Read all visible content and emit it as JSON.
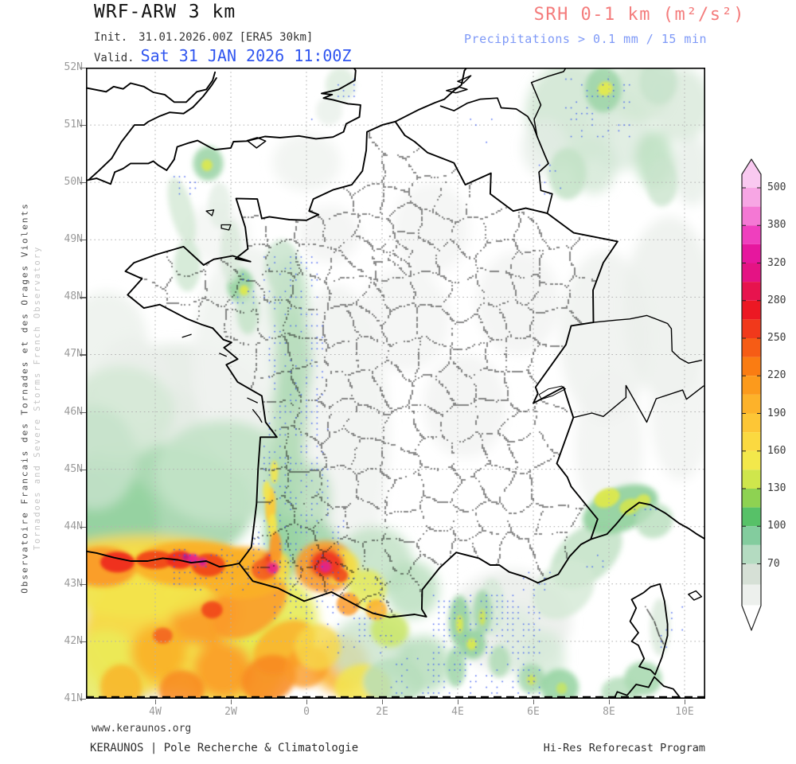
{
  "header": {
    "model_title": "WRF-ARW 3 km",
    "init_label": "Init.",
    "init_value": "31.01.2026.00Z [ERA5 30km]",
    "valid_label": "Valid.",
    "valid_value": "Sat 31 JAN 2026 11:00Z",
    "valid_color": "#2f55f0",
    "product_title": "SRH 0-1 km (m²/s²)",
    "product_title_color": "#f47c7c",
    "product_subtitle": "Precipitations > 0.1 mm / 15 min",
    "product_subtitle_color": "#7e99f7"
  },
  "sidebar_left": {
    "line_primary": "Observatoire Francais des Tornades et des Orages Violents",
    "line_secondary": "Tornadoes and Severe Storms French Observatory"
  },
  "map": {
    "lat_tick_labels": [
      "52N",
      "51N",
      "50N",
      "49N",
      "48N",
      "47N",
      "46N",
      "45N",
      "44N",
      "43N",
      "42N",
      "41N"
    ],
    "lat_tick_degrees": [
      52,
      51,
      50,
      49,
      48,
      47,
      46,
      45,
      44,
      43,
      42,
      41
    ],
    "lon_tick_labels": [
      "4W",
      "2W",
      "0",
      "2E",
      "4E",
      "6E",
      "8E",
      "10E"
    ],
    "lon_tick_degrees": [
      -4,
      -2,
      0,
      2,
      4,
      6,
      8,
      10
    ],
    "graticule_color": "#b2b2b2",
    "precip_dot_color": "#3c5cf2",
    "field_blobs": [
      [
        -4.8,
        44.6,
        3.2,
        2.0,
        0,
        "#dfe7df",
        0.95
      ],
      [
        -3.4,
        45.7,
        2.6,
        1.5,
        0,
        "#e6ece6",
        0.9
      ],
      [
        -5.3,
        42.0,
        1.7,
        1.5,
        0,
        "#e4e8e4",
        0.9
      ],
      [
        -5.3,
        47.2,
        1.1,
        0.9,
        0,
        "#ebf0eb",
        0.8
      ],
      [
        -4.6,
        46.5,
        1.0,
        0.8,
        0,
        "#eaefea",
        0.8
      ],
      [
        -1.5,
        46.9,
        1.5,
        2.0,
        0,
        "#f0f3f0",
        0.9
      ],
      [
        0.8,
        45.6,
        1.4,
        2.6,
        0,
        "#f0f2f0",
        0.85
      ],
      [
        2.6,
        47.6,
        1.2,
        0.9,
        0,
        "#f2f4f2",
        0.8
      ],
      [
        4.2,
        46.1,
        1.1,
        0.9,
        0,
        "#f1f3f1",
        0.8
      ],
      [
        5.6,
        47.9,
        1.1,
        0.9,
        0,
        "#f1f3f1",
        0.8
      ],
      [
        7.9,
        47.3,
        1.2,
        1.5,
        0,
        "#eef1ee",
        0.85
      ],
      [
        9.6,
        47.8,
        1.2,
        1.6,
        0,
        "#ecf0ec",
        0.85
      ],
      [
        9.9,
        46.0,
        0.8,
        1.2,
        0,
        "#f0f2f0",
        0.8
      ],
      [
        3.3,
        49.2,
        1.0,
        0.8,
        0,
        "#f2f4f2",
        0.8
      ],
      [
        0.6,
        49.1,
        0.8,
        0.5,
        0,
        "#f1f3f1",
        0.8
      ],
      [
        0.0,
        50.35,
        0.9,
        0.5,
        0,
        "#eff2ef",
        0.8
      ],
      [
        5.4,
        42.35,
        1.6,
        0.9,
        0,
        "#ebeeeb",
        0.9
      ],
      [
        8.0,
        45.4,
        0.9,
        1.3,
        0,
        "#f0f2f0",
        0.8
      ],
      [
        -2.4,
        49.1,
        0.9,
        0.5,
        0,
        "#f1f3f1",
        0.7
      ],
      [
        -4.2,
        44.35,
        2.8,
        1.1,
        0,
        "#a9d8b1",
        0.95
      ],
      [
        -2.2,
        44.95,
        1.8,
        0.9,
        0,
        "#c2e2c6",
        0.9
      ],
      [
        -5.4,
        44.1,
        1.5,
        0.9,
        0,
        "#93d29f",
        0.9
      ],
      [
        -4.9,
        46.0,
        1.4,
        0.8,
        0,
        "#d3e8d5",
        0.85
      ],
      [
        -5.6,
        45.2,
        1.1,
        0.9,
        0,
        "#c6e2ca",
        0.85
      ],
      [
        -3.3,
        42.3,
        2.4,
        1.2,
        0,
        "#f2e44c",
        0.95
      ],
      [
        -4.6,
        42.0,
        1.4,
        1.0,
        0,
        "#f6d84a",
        0.92
      ],
      [
        -2.0,
        41.8,
        1.6,
        1.0,
        0,
        "#f2e44c",
        0.92
      ],
      [
        -0.9,
        42.3,
        1.2,
        0.9,
        0,
        "#e6ea52",
        0.88
      ],
      [
        -5.3,
        41.4,
        1.0,
        0.8,
        0,
        "#eaec5a",
        0.8
      ],
      [
        -1.5,
        42.6,
        1.1,
        0.45,
        -35,
        "#fa9a28",
        0.88
      ],
      [
        -0.6,
        41.9,
        0.9,
        0.4,
        -35,
        "#fab028",
        0.85
      ],
      [
        -1.0,
        41.35,
        0.75,
        0.4,
        -25,
        "#f8871e",
        0.85
      ],
      [
        0.0,
        41.55,
        0.6,
        0.35,
        -30,
        "#fa9a28",
        0.8
      ],
      [
        -2.7,
        42.45,
        0.9,
        0.5,
        -20,
        "#fa9a28",
        0.9
      ],
      [
        -3.9,
        41.8,
        0.75,
        0.5,
        0,
        "#fab028",
        0.9
      ],
      [
        -2.2,
        41.5,
        0.8,
        0.5,
        20,
        "#fa9a28",
        0.88
      ],
      [
        -4.9,
        41.2,
        0.55,
        0.4,
        0,
        "#fab028",
        0.8
      ],
      [
        -3.3,
        41.15,
        0.6,
        0.35,
        0,
        "#f8871e",
        0.85
      ],
      [
        -4.3,
        43.35,
        2.6,
        0.5,
        0,
        "#f6d84a",
        0.97
      ],
      [
        -4.5,
        43.0,
        2.2,
        0.6,
        0,
        "#f2e44c",
        0.95
      ],
      [
        -3.0,
        43.35,
        1.6,
        0.4,
        0,
        "#fab028",
        0.95
      ],
      [
        -5.4,
        43.3,
        0.9,
        0.35,
        0,
        "#fa9a28",
        0.95
      ],
      [
        -1.7,
        43.2,
        1.2,
        0.45,
        0,
        "#fab028",
        0.92
      ],
      [
        1.8,
        43.4,
        1.0,
        0.6,
        0,
        "#c2e2c6",
        0.85
      ],
      [
        0.9,
        41.6,
        0.75,
        0.5,
        0,
        "#fab028",
        0.85
      ],
      [
        1.5,
        41.2,
        0.75,
        0.4,
        0,
        "#f2e44c",
        0.85
      ],
      [
        1.7,
        41.85,
        1.1,
        0.6,
        0,
        "#c9e4cc",
        0.8
      ],
      [
        7.0,
        51.2,
        1.2,
        0.9,
        0,
        "#d2e7d4",
        0.9
      ],
      [
        8.3,
        50.9,
        0.85,
        0.7,
        0,
        "#dcebde",
        0.85
      ],
      [
        8.8,
        51.6,
        0.85,
        0.55,
        0,
        "#d2e7d4",
        0.85
      ],
      [
        9.9,
        51.35,
        0.8,
        0.65,
        0,
        "#d8e9da",
        0.8
      ],
      [
        7.4,
        43.5,
        1.1,
        0.45,
        -40,
        "#c2e2c6",
        0.85
      ],
      [
        8.3,
        44.3,
        1.05,
        0.38,
        -22,
        "#93d29f",
        0.95
      ],
      [
        6.8,
        42.9,
        0.9,
        0.45,
        -40,
        "#d3e8d5",
        0.8
      ],
      [
        5.6,
        42.0,
        0.55,
        0.6,
        0,
        "#dcebde",
        0.8
      ],
      [
        6.3,
        41.7,
        0.55,
        0.5,
        0,
        "#d3e8d5",
        0.75
      ],
      [
        10.2,
        50.2,
        0.5,
        0.6,
        0,
        "#e4ece5",
        0.75
      ],
      [
        -0.55,
        43.9,
        0.55,
        0.8,
        0,
        "#93d29f",
        0.95
      ],
      [
        -0.5,
        44.9,
        0.5,
        0.8,
        0,
        "#abd9b1",
        0.9
      ],
      [
        -0.45,
        45.9,
        0.5,
        0.85,
        0,
        "#b7ddbb",
        0.88
      ],
      [
        -0.35,
        46.9,
        0.5,
        0.9,
        0,
        "#b1dbb7",
        0.85
      ],
      [
        -0.45,
        47.9,
        0.5,
        0.8,
        0,
        "#bbdfbf",
        0.85
      ],
      [
        -0.65,
        48.55,
        0.45,
        0.45,
        0,
        "#c6e2ca",
        0.8
      ],
      [
        0.15,
        44.5,
        0.5,
        0.6,
        0,
        "#b7ddbb",
        0.8
      ],
      [
        0.3,
        43.6,
        0.6,
        0.5,
        0,
        "#9fd5a8",
        0.85
      ],
      [
        0.5,
        43.3,
        0.8,
        0.45,
        0,
        "#fa9a28",
        0.9
      ],
      [
        0.9,
        43.3,
        0.5,
        0.3,
        0,
        "#f2e44c",
        0.85
      ],
      [
        1.6,
        42.9,
        0.5,
        0.35,
        0,
        "#e6ea52",
        0.8
      ],
      [
        2.2,
        42.2,
        0.5,
        0.3,
        0,
        "#c9e65e",
        0.8
      ],
      [
        1.1,
        42.65,
        0.3,
        0.2,
        0,
        "#fa9a28",
        0.85
      ],
      [
        1.85,
        42.55,
        0.28,
        0.18,
        0,
        "#fab028",
        0.85
      ],
      [
        0.3,
        41.9,
        0.6,
        0.4,
        0,
        "#f6d84a",
        0.8
      ],
      [
        -0.85,
        43.35,
        0.35,
        0.22,
        0,
        "#ee2a1e",
        0.92
      ],
      [
        -5.0,
        43.38,
        0.45,
        0.18,
        0,
        "#ee2a1e",
        0.95
      ],
      [
        -4.0,
        43.42,
        0.5,
        0.16,
        0,
        "#f04018",
        0.9
      ],
      [
        -3.35,
        43.42,
        0.35,
        0.16,
        0,
        "#ee2a1e",
        0.95
      ],
      [
        -2.6,
        43.33,
        0.45,
        0.2,
        0,
        "#f04018",
        0.9
      ],
      [
        -2.5,
        42.55,
        0.28,
        0.15,
        0,
        "#f04018",
        0.85
      ],
      [
        -3.8,
        42.1,
        0.26,
        0.14,
        0,
        "#f25a20",
        0.8
      ],
      [
        0.55,
        43.35,
        0.45,
        0.25,
        0,
        "#ee2a1e",
        0.9
      ],
      [
        -1.15,
        43.25,
        0.3,
        0.18,
        0,
        "#f25a20",
        0.85
      ],
      [
        2.8,
        42.9,
        0.7,
        0.5,
        0,
        "#b7ddbb",
        0.8
      ],
      [
        3.1,
        41.6,
        0.7,
        0.5,
        0,
        "#b1dbb7",
        0.8
      ],
      [
        2.3,
        41.3,
        0.8,
        0.4,
        0,
        "#b7ddbb",
        0.8
      ],
      [
        -2.6,
        50.33,
        0.4,
        0.3,
        0,
        "#9fd5a8",
        0.9
      ],
      [
        -3.3,
        49.5,
        0.3,
        0.6,
        -15,
        "#d3e8d5",
        0.8
      ],
      [
        -3.15,
        48.55,
        0.35,
        0.45,
        0,
        "#cde6d0",
        0.8
      ],
      [
        -1.75,
        48.2,
        0.35,
        0.3,
        0,
        "#93d29f",
        0.9
      ],
      [
        -1.55,
        47.75,
        0.3,
        0.4,
        0,
        "#c2e2c6",
        0.8
      ],
      [
        -2.0,
        48.8,
        0.28,
        0.55,
        0,
        "#d8e9da",
        0.8
      ],
      [
        -2.3,
        49.6,
        0.3,
        0.4,
        0,
        "#e0ece1",
        0.75
      ],
      [
        0.9,
        51.7,
        0.4,
        0.3,
        0,
        "#d8e9da",
        0.75
      ],
      [
        0.6,
        51.25,
        0.35,
        0.25,
        0,
        "#e6eee7",
        0.7
      ],
      [
        7.85,
        51.62,
        0.48,
        0.4,
        0,
        "#9fd5a8",
        0.9
      ],
      [
        7.6,
        50.3,
        0.6,
        0.5,
        0,
        "#d2e7d4",
        0.8
      ],
      [
        6.9,
        50.15,
        0.5,
        0.45,
        0,
        "#c2e2c6",
        0.85
      ],
      [
        9.2,
        50.4,
        0.5,
        0.5,
        0,
        "#bbdfbf",
        0.85
      ],
      [
        9.4,
        50.0,
        0.42,
        0.42,
        0,
        "#c9e4cc",
        0.8
      ],
      [
        6.3,
        50.6,
        0.6,
        0.5,
        0,
        "#e4ece5",
        0.75
      ],
      [
        9.3,
        51.75,
        0.5,
        0.4,
        0,
        "#c6e2ca",
        0.8
      ],
      [
        9.2,
        44.1,
        0.5,
        0.3,
        -25,
        "#b7ddbb",
        0.8
      ],
      [
        4.9,
        42.6,
        0.35,
        0.5,
        0,
        "#d3e8d5",
        0.75
      ],
      [
        4.05,
        42.35,
        0.28,
        0.45,
        0,
        "#93d29f",
        0.9
      ],
      [
        4.65,
        42.5,
        0.26,
        0.4,
        0,
        "#9fd5a8",
        0.85
      ],
      [
        4.4,
        41.95,
        0.35,
        0.26,
        0,
        "#93d29f",
        0.9
      ],
      [
        3.95,
        41.55,
        0.26,
        0.35,
        0,
        "#9fd5a8",
        0.85
      ],
      [
        5.1,
        41.65,
        0.28,
        0.28,
        0,
        "#abd9b1",
        0.8
      ],
      [
        5.95,
        41.35,
        0.35,
        0.26,
        0,
        "#9fd5a8",
        0.8
      ],
      [
        6.7,
        41.2,
        0.5,
        0.32,
        0,
        "#93d29f",
        0.85
      ],
      [
        8.9,
        41.35,
        0.5,
        0.3,
        0,
        "#9fd5a8",
        0.8
      ],
      [
        8.3,
        41.12,
        0.5,
        0.26,
        0,
        "#abd9b1",
        0.75
      ],
      [
        9.35,
        42.25,
        0.26,
        0.5,
        0,
        "#d8e9da",
        0.8
      ],
      [
        -0.95,
        44.35,
        0.14,
        0.34,
        0,
        "#fbca38",
        0.95
      ],
      [
        -0.9,
        44.0,
        0.12,
        0.22,
        0,
        "#f2e44c",
        0.95
      ],
      [
        -0.85,
        44.95,
        0.1,
        0.2,
        0,
        "#f2e44c",
        0.9
      ],
      [
        -0.82,
        43.62,
        0.16,
        0.3,
        0,
        "#fa9a28",
        0.95
      ],
      [
        -1.05,
        44.62,
        0.1,
        0.18,
        0,
        "#f2e44c",
        0.9
      ],
      [
        -0.65,
        43.3,
        0.22,
        0.25,
        0,
        "#f2e44c",
        0.9
      ],
      [
        -3.0,
        43.44,
        0.14,
        0.09,
        0,
        "#e8238c",
        0.95
      ],
      [
        -2.75,
        43.38,
        0.1,
        0.07,
        0,
        "#d6179e",
        0.9
      ],
      [
        -3.2,
        43.47,
        0.08,
        0.06,
        0,
        "#b01890",
        0.85
      ],
      [
        -0.88,
        43.28,
        0.15,
        0.1,
        0,
        "#e8238c",
        0.9
      ],
      [
        0.5,
        43.3,
        0.16,
        0.1,
        0,
        "#e0238c",
        0.9
      ],
      [
        0.9,
        43.15,
        0.2,
        0.12,
        0,
        "#f04018",
        0.85
      ],
      [
        -1.65,
        48.12,
        0.12,
        0.09,
        0,
        "#dce84e",
        0.95
      ],
      [
        -2.63,
        50.3,
        0.14,
        0.1,
        0,
        "#dce84e",
        0.9
      ],
      [
        7.9,
        51.63,
        0.2,
        0.12,
        -35,
        "#e4ea4e",
        0.95
      ],
      [
        7.95,
        44.5,
        0.35,
        0.16,
        -22,
        "#dce84e",
        0.95
      ],
      [
        8.55,
        44.35,
        0.28,
        0.13,
        -22,
        "#d2e450",
        0.9
      ],
      [
        8.9,
        44.45,
        0.2,
        0.11,
        -22,
        "#dce84e",
        0.85
      ],
      [
        4.05,
        42.3,
        0.09,
        0.16,
        0,
        "#dce84e",
        0.9
      ],
      [
        4.65,
        42.42,
        0.08,
        0.14,
        0,
        "#d2e450",
        0.85
      ],
      [
        4.37,
        41.95,
        0.13,
        0.1,
        0,
        "#dce84e",
        0.9
      ],
      [
        5.95,
        41.33,
        0.12,
        0.09,
        0,
        "#d2e450",
        0.8
      ],
      [
        6.75,
        41.18,
        0.14,
        0.1,
        0,
        "#c9e65e",
        0.8
      ]
    ],
    "precip_regions": [
      [
        -1.25,
        47.6,
        0.35,
        48.75,
        0.3
      ],
      [
        -1.05,
        45.8,
        0.45,
        47.6,
        0.35
      ],
      [
        -1.25,
        44.2,
        0.65,
        45.8,
        0.4
      ],
      [
        -1.45,
        43.2,
        1.1,
        44.2,
        0.5
      ],
      [
        -3.6,
        42.9,
        -1.45,
        43.62,
        0.45
      ],
      [
        -0.9,
        42.4,
        2.1,
        43.2,
        0.45
      ],
      [
        0.5,
        41.8,
        2.3,
        42.4,
        0.3
      ],
      [
        3.3,
        41.0,
        6.2,
        42.9,
        0.5
      ],
      [
        2.2,
        41.0,
        3.3,
        41.8,
        0.3
      ],
      [
        5.65,
        42.9,
        6.45,
        43.3,
        0.3
      ],
      [
        7.3,
        43.3,
        7.95,
        43.65,
        0.25
      ],
      [
        6.8,
        50.8,
        8.6,
        51.9,
        0.3
      ],
      [
        5.9,
        49.7,
        6.8,
        50.4,
        0.2
      ],
      [
        4.3,
        50.7,
        4.95,
        51.15,
        0.2
      ],
      [
        -3.6,
        49.8,
        -2.9,
        50.45,
        0.3
      ],
      [
        0.8,
        51.5,
        1.35,
        51.95,
        0.3
      ],
      [
        -2.05,
        47.9,
        -1.3,
        48.45,
        0.3
      ],
      [
        9.35,
        41.9,
        9.95,
        42.65,
        0.25
      ],
      [
        8.6,
        44.2,
        9.3,
        44.6,
        0.2
      ],
      [
        -0.4,
        50.9,
        0.35,
        51.3,
        0.12
      ]
    ]
  },
  "colorbar": {
    "labels": [
      "500",
      "380",
      "320",
      "280",
      "250",
      "220",
      "190",
      "160",
      "130",
      "100",
      "70"
    ],
    "colors": [
      "#f9c9f0",
      "#f7a6e4",
      "#f478d4",
      "#ef3fbe",
      "#e6179e",
      "#e41384",
      "#e7134e",
      "#ec1823",
      "#f1391b",
      "#f65c15",
      "#fa7c12",
      "#fc9a1c",
      "#fdb22a",
      "#fdc636",
      "#fbd940",
      "#f3e84b",
      "#cfe64c",
      "#8ed252",
      "#57c168",
      "#83cc9e",
      "#b4dbc1",
      "#d6e0d6",
      "#edf0ed"
    ],
    "outline_color": "#222222"
  },
  "footer": {
    "url": "www.keraunos.org",
    "org": "KERAUNOS | Pole Recherche & Climatologie",
    "program": "Hi-Res Reforecast Program"
  }
}
